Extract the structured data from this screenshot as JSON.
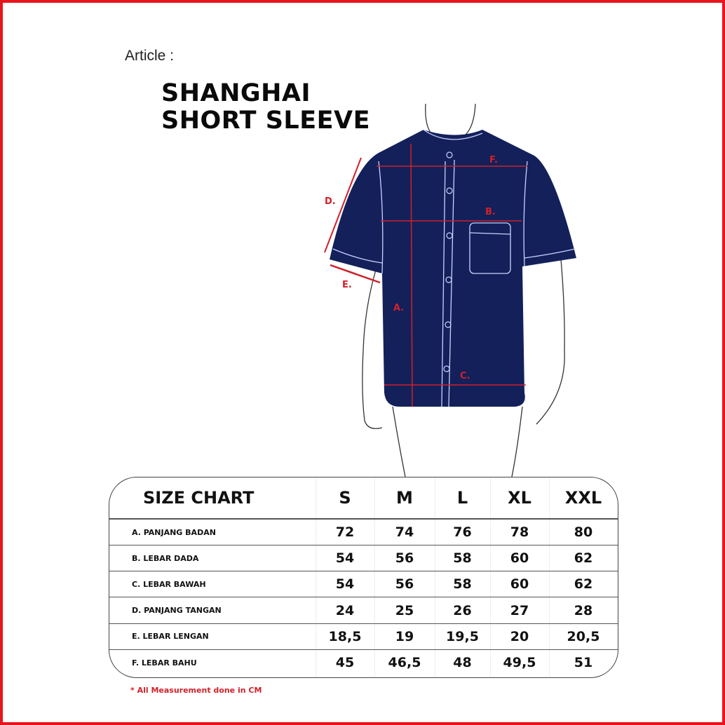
{
  "article_label": "Article :",
  "product": {
    "line1": "SHANGHAI",
    "line2": "SHORT SLEEVE"
  },
  "diagram": {
    "labels": {
      "a": "A.",
      "b": "B.",
      "c": "C.",
      "d": "D.",
      "e": "E.",
      "f": "F."
    },
    "colors": {
      "shirt": "#13205a",
      "measure": "#d0212a",
      "frame": "#e8141b"
    }
  },
  "size_chart": {
    "title": "SIZE CHART",
    "sizes": [
      "S",
      "M",
      "L",
      "XL",
      "XXL"
    ],
    "rows": [
      {
        "label": "A. PANJANG BADAN",
        "values": [
          "72",
          "74",
          "76",
          "78",
          "80"
        ]
      },
      {
        "label": "B. LEBAR DADA",
        "values": [
          "54",
          "56",
          "58",
          "60",
          "62"
        ]
      },
      {
        "label": "C. LEBAR BAWAH",
        "values": [
          "54",
          "56",
          "58",
          "60",
          "62"
        ]
      },
      {
        "label": "D. PANJANG TANGAN",
        "values": [
          "24",
          "25",
          "26",
          "27",
          "28"
        ]
      },
      {
        "label": "E. LEBAR LENGAN",
        "values": [
          "18,5",
          "19",
          "19,5",
          "20",
          "20,5"
        ]
      },
      {
        "label": "F. LEBAR BAHU",
        "values": [
          "45",
          "46,5",
          "48",
          "49,5",
          "51"
        ]
      }
    ]
  },
  "note": "* All Measurement done in CM"
}
